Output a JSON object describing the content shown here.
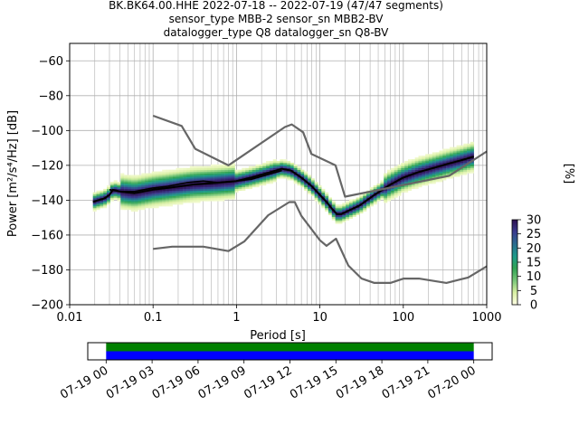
{
  "title_lines": [
    "BK.BK64.00.HHE   2022-07-18 -- 2022-07-19  (47/47 segments)",
    "sensor_type MBB-2 sensor_sn MBB2-BV",
    "datalogger_type Q8 datalogger_sn Q8-BV"
  ],
  "chart_data": [
    {
      "type": "heatmap",
      "title": "",
      "xlabel": "Period [s]",
      "ylabel": "Power [m²/s⁴/Hz] [dB]",
      "xscale": "log",
      "xlim": [
        0.01,
        1000
      ],
      "ylim": [
        -200,
        -50
      ],
      "grid": true,
      "x_ticks": [
        0.01,
        0.1,
        1,
        10,
        100,
        1000
      ],
      "x_tick_labels": [
        "0.01",
        "0.1",
        "1",
        "10",
        "100",
        "1000"
      ],
      "y_ticks": [
        -200,
        -180,
        -160,
        -140,
        -120,
        -100,
        -80,
        -60
      ],
      "y_tick_labels": [
        "−200",
        "−180",
        "−160",
        "−140",
        "−120",
        "−100",
        "−80",
        "−60"
      ],
      "colorbar": {
        "label": "[%]",
        "min": 0,
        "max": 30,
        "ticks": [
          0,
          5,
          10,
          15,
          20,
          25,
          30
        ],
        "colormap": [
          "#ffffe5",
          "#d9f0a3",
          "#78c679",
          "#31a354",
          "#1d9a8a",
          "#2b6c8f",
          "#3b3b8f",
          "#2d0f4f"
        ]
      },
      "series": [
        {
          "role": "mode",
          "color": "#000000",
          "x": [
            0.019,
            0.022,
            0.026,
            0.03,
            0.033,
            0.04,
            0.06,
            0.1,
            0.15,
            0.3,
            0.6,
            1.0,
            1.5,
            2.5,
            3.5,
            4.5,
            6.0,
            8.0,
            10.0,
            12.0,
            14.0,
            16.0,
            18.0,
            22.0,
            30.0,
            45.0,
            70.0,
            100.0,
            150.0,
            250.0,
            350.0,
            500.0,
            700.0
          ],
          "y": [
            -141,
            -140,
            -139,
            -137,
            -134,
            -135,
            -136,
            -134,
            -133,
            -131,
            -130,
            -129,
            -127,
            -124,
            -122,
            -123,
            -127,
            -132,
            -137,
            -141,
            -145,
            -148,
            -148,
            -146,
            -143,
            -137,
            -131,
            -127,
            -124,
            -121,
            -119,
            -117,
            -115
          ]
        },
        {
          "role": "mean",
          "color": "#000000",
          "x": [
            0.03,
            0.04,
            0.06,
            0.1,
            0.15,
            0.25,
            0.4,
            0.6,
            1.0,
            1.5,
            2.5,
            3.5
          ],
          "y": [
            -134,
            -135,
            -135,
            -133,
            -132,
            -130,
            -129,
            -130,
            -129,
            -128,
            -125,
            -123
          ]
        },
        {
          "role": "noise model high",
          "color": "#666666",
          "x": [
            0.1,
            0.22,
            0.32,
            0.8,
            3.8,
            4.6,
            6.3,
            7.9,
            15.4,
            20.0,
            354.8,
            1000.0
          ],
          "y": [
            -91.5,
            -97.4,
            -110.5,
            -120.0,
            -98.0,
            -96.5,
            -101.0,
            -113.5,
            -120.0,
            -138.0,
            -126.0,
            -112.0
          ]
        },
        {
          "role": "noise model low",
          "color": "#666666",
          "x": [
            0.1,
            0.17,
            0.4,
            0.8,
            1.24,
            2.4,
            4.3,
            5.0,
            6.0,
            10.0,
            12.0,
            15.6,
            21.9,
            31.6,
            45.0,
            70.0,
            101.0,
            154.0,
            328.0,
            600.0,
            1000.0
          ],
          "y": [
            -168.0,
            -166.7,
            -166.7,
            -169.2,
            -163.7,
            -148.6,
            -141.1,
            -141.1,
            -149.0,
            -163.0,
            -166.2,
            -162.1,
            -177.5,
            -185.0,
            -187.5,
            -187.5,
            -185.0,
            -185.0,
            -187.5,
            -184.4,
            -178.0
          ]
        }
      ]
    },
    {
      "type": "bar",
      "title": "",
      "xlabel": "",
      "ylabel": "",
      "x_tick_labels": [
        "07-19 00",
        "07-19 03",
        "07-19 06",
        "07-19 09",
        "07-19 12",
        "07-19 15",
        "07-19 18",
        "07-19 21",
        "07-20 00"
      ],
      "xlim_hours": [
        -1.2,
        25.2
      ],
      "series": [
        {
          "role": "data coverage",
          "color": "#008000",
          "start_hour": 0,
          "end_hour": 24
        },
        {
          "role": "data used",
          "color": "#0000ff",
          "start_hour": 0,
          "end_hour": 24
        }
      ]
    }
  ]
}
